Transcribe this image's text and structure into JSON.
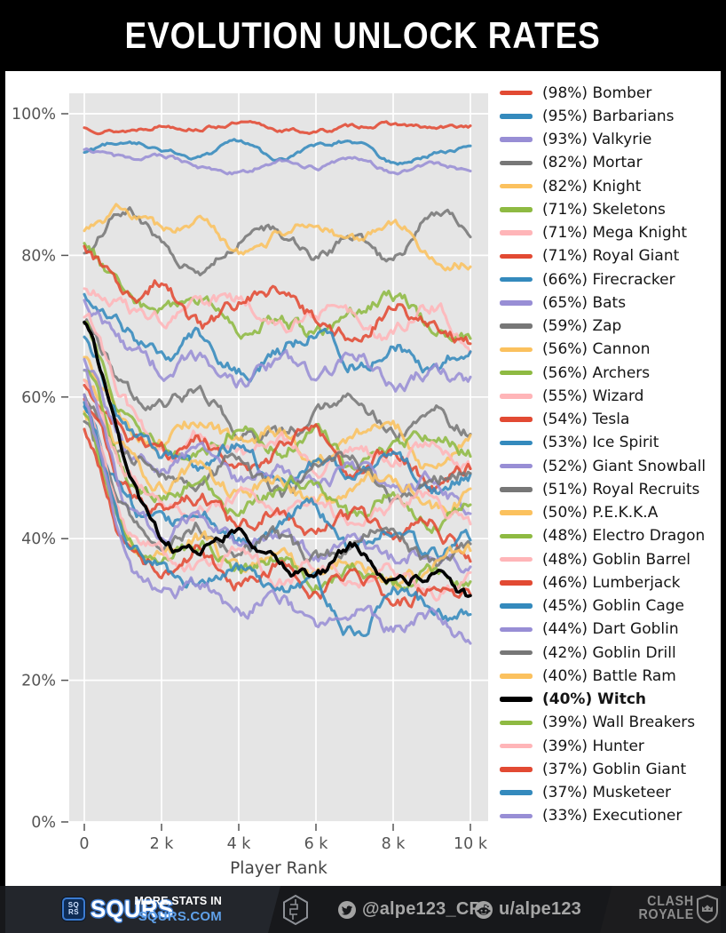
{
  "header": {
    "title": "EVOLUTION UNLOCK RATES"
  },
  "chart_data": {
    "type": "line",
    "title": "EVOLUTION UNLOCK RATES",
    "xlabel": "Player Rank",
    "ylabel": "",
    "x": [
      0,
      1000,
      2000,
      3000,
      4000,
      5000,
      6000,
      7000,
      8000,
      9000,
      10000
    ],
    "xlim": [
      -400,
      10600
    ],
    "ylim": [
      0,
      103
    ],
    "grid": true,
    "legend_position": "right",
    "plot_bg": "#e5e5e5",
    "grid_color": "#ffffff",
    "tick_color": "#555555",
    "xticks": [
      {
        "v": 0,
        "label": "0"
      },
      {
        "v": 2000,
        "label": "2 k"
      },
      {
        "v": 4000,
        "label": "4 k"
      },
      {
        "v": 6000,
        "label": "6 k"
      },
      {
        "v": 8000,
        "label": "8 k"
      },
      {
        "v": 10000,
        "label": "10 k"
      }
    ],
    "yticks": [
      {
        "v": 0,
        "label": "0%"
      },
      {
        "v": 20,
        "label": "20%"
      },
      {
        "v": 40,
        "label": "40%"
      },
      {
        "v": 60,
        "label": "60%"
      },
      {
        "v": 80,
        "label": "80%"
      },
      {
        "v": 100,
        "label": "100%"
      }
    ],
    "series": [
      {
        "label": "(98%) Bomber",
        "name": "Bomber",
        "pct": 98,
        "color": "#E24A33",
        "bold": false,
        "values": [
          98,
          97.6,
          98.4,
          98,
          98.6,
          97.8,
          97.5,
          98.2,
          98.5,
          97.9,
          98.3
        ]
      },
      {
        "label": "(95%) Barbarians",
        "name": "Barbarians",
        "pct": 95,
        "color": "#348ABD",
        "bold": false,
        "values": [
          94.5,
          96.2,
          95,
          93.8,
          96,
          93.4,
          95.2,
          96,
          93,
          94.3,
          95.4
        ]
      },
      {
        "label": "(93%) Valkyrie",
        "name": "Valkyrie",
        "pct": 93,
        "color": "#988ED5",
        "bold": false,
        "values": [
          95,
          93.6,
          94.2,
          92.4,
          91.6,
          93.2,
          92.4,
          93.6,
          91.8,
          93,
          92
        ]
      },
      {
        "label": "(82%) Mortar",
        "name": "Mortar",
        "pct": 82,
        "color": "#777777",
        "bold": false,
        "values": [
          80,
          86,
          82,
          78,
          82,
          83.5,
          80,
          82.5,
          79,
          86,
          84
        ]
      },
      {
        "label": "(82%) Knight",
        "name": "Knight",
        "pct": 82,
        "color": "#FBC15E",
        "bold": false,
        "values": [
          84,
          86.5,
          83.5,
          85,
          80.5,
          83,
          84.5,
          82,
          85,
          80,
          79
        ]
      },
      {
        "label": "(71%) Skeletons",
        "name": "Skeletons",
        "pct": 71,
        "color": "#8EBA42",
        "bold": false,
        "values": [
          82,
          74.5,
          72,
          74,
          70,
          71.5,
          69,
          72,
          74,
          70,
          68.5
        ]
      },
      {
        "label": "(71%) Mega Knight",
        "name": "Mega Knight",
        "pct": 71,
        "color": "#FFB5B8",
        "bold": false,
        "values": [
          76,
          73,
          71,
          72.5,
          74,
          70,
          72,
          71,
          69,
          73,
          68
        ]
      },
      {
        "label": "(71%) Royal Giant",
        "name": "Royal Giant",
        "pct": 71,
        "color": "#E24A33",
        "bold": false,
        "values": [
          82,
          74,
          76,
          70,
          73,
          75,
          71,
          69,
          72.5,
          70,
          67.5
        ]
      },
      {
        "label": "(66%) Firecracker",
        "name": "Firecracker",
        "pct": 66,
        "color": "#348ABD",
        "bold": false,
        "values": [
          75,
          70,
          66,
          68.5,
          64,
          66,
          69,
          65,
          67,
          64,
          67.5
        ]
      },
      {
        "label": "(65%) Bats",
        "name": "Bats",
        "pct": 65,
        "color": "#988ED5",
        "bold": false,
        "values": [
          73,
          68,
          64,
          66,
          62,
          65,
          63,
          66,
          61.5,
          64,
          62
        ]
      },
      {
        "label": "(59%) Zap",
        "name": "Zap",
        "pct": 59,
        "color": "#777777",
        "bold": false,
        "values": [
          71,
          62,
          58,
          61,
          56,
          54,
          57,
          60,
          55,
          58,
          55
        ]
      },
      {
        "label": "(56%) Cannon",
        "name": "Cannon",
        "pct": 56,
        "color": "#FBC15E",
        "bold": false,
        "values": [
          65,
          57,
          54,
          57,
          53,
          55,
          52,
          54,
          56,
          50,
          54
        ]
      },
      {
        "label": "(56%) Archers",
        "name": "Archers",
        "pct": 56,
        "color": "#8EBA42",
        "bold": false,
        "values": [
          70,
          58,
          54,
          52,
          56,
          53,
          55,
          50,
          53,
          55,
          52
        ]
      },
      {
        "label": "(55%) Wizard",
        "name": "Wizard",
        "pct": 55,
        "color": "#FFB5B8",
        "bold": false,
        "values": [
          72,
          60,
          53,
          55,
          52,
          54,
          50,
          53,
          51,
          54,
          50
        ]
      },
      {
        "label": "(54%) Tesla",
        "name": "Tesla",
        "pct": 54,
        "color": "#E24A33",
        "bold": false,
        "values": [
          62,
          55,
          52,
          54,
          50,
          52,
          55,
          49,
          52,
          48,
          50
        ]
      },
      {
        "label": "(53%) Ice Spirit",
        "name": "Ice Spirit",
        "pct": 53,
        "color": "#348ABD",
        "bold": false,
        "values": [
          68,
          56,
          52,
          50,
          53,
          48,
          51,
          49,
          52,
          47,
          49
        ]
      },
      {
        "label": "(52%) Giant Snowball",
        "name": "Giant Snowball",
        "pct": 52,
        "color": "#988ED5",
        "bold": false,
        "values": [
          66,
          54,
          50,
          52,
          48,
          50,
          47,
          50,
          46,
          48,
          44
        ]
      },
      {
        "label": "(51%) Royal Recruits",
        "name": "Royal Recruits",
        "pct": 51,
        "color": "#777777",
        "bold": false,
        "values": [
          60,
          52,
          50,
          48,
          51,
          46,
          49,
          51,
          45,
          48,
          50
        ]
      },
      {
        "label": "(50%) P.E.K.K.A",
        "name": "P.E.K.K.A",
        "pct": 50,
        "color": "#FBC15E",
        "bold": false,
        "values": [
          63,
          52,
          48,
          50,
          46,
          48,
          45,
          47,
          49,
          44,
          46
        ]
      },
      {
        "label": "(48%) Electro Dragon",
        "name": "Electro Dragon",
        "pct": 48,
        "color": "#8EBA42",
        "bold": false,
        "values": [
          64,
          50,
          46,
          48,
          44,
          46,
          48,
          43,
          46,
          42,
          45
        ]
      },
      {
        "label": "(48%) Goblin Barrel",
        "name": "Goblin Barrel",
        "pct": 48,
        "color": "#FFB5B8",
        "bold": false,
        "values": [
          62,
          50,
          47,
          44,
          46,
          43,
          45,
          42,
          44,
          46,
          41
        ]
      },
      {
        "label": "(46%) Lumberjack",
        "name": "Lumberjack",
        "pct": 46,
        "color": "#E24A33",
        "bold": false,
        "values": [
          60,
          48,
          44,
          46,
          42,
          44,
          41,
          43,
          40,
          42,
          38
        ]
      },
      {
        "label": "(45%) Goblin Cage",
        "name": "Goblin Cage",
        "pct": 45,
        "color": "#348ABD",
        "bold": false,
        "values": [
          58,
          46,
          42,
          44,
          40,
          42,
          44,
          39,
          41,
          38,
          40
        ]
      },
      {
        "label": "(44%) Dart Goblin",
        "name": "Dart Goblin",
        "pct": 44,
        "color": "#988ED5",
        "bold": false,
        "values": [
          64,
          46,
          41,
          43,
          39,
          41,
          38,
          40,
          37,
          39,
          36
        ]
      },
      {
        "label": "(42%) Goblin Drill",
        "name": "Goblin Drill",
        "pct": 42,
        "color": "#777777",
        "bold": false,
        "values": [
          56,
          44,
          40,
          42,
          38,
          40,
          37,
          39,
          41,
          36,
          38
        ]
      },
      {
        "label": "(40%) Battle Ram",
        "name": "Battle Ram",
        "pct": 40,
        "color": "#FBC15E",
        "bold": false,
        "values": [
          58,
          42,
          38,
          40,
          36,
          38,
          35,
          37,
          34,
          36,
          38
        ]
      },
      {
        "label": "(40%) Witch",
        "name": "Witch",
        "pct": 40,
        "color": "#000000",
        "bold": true,
        "values": [
          71,
          52,
          40,
          39,
          41,
          36.5,
          35,
          39,
          34,
          35,
          31.5
        ]
      },
      {
        "label": "(39%) Wall Breakers",
        "name": "Wall Breakers",
        "pct": 39,
        "color": "#8EBA42",
        "bold": false,
        "values": [
          57,
          42,
          37,
          39,
          35,
          37,
          34,
          36,
          33,
          35,
          33
        ]
      },
      {
        "label": "(39%) Hunter",
        "name": "Hunter",
        "pct": 39,
        "color": "#FFB5B8",
        "bold": false,
        "values": [
          60,
          42,
          38,
          36,
          38,
          34,
          36,
          33,
          35,
          32,
          34
        ]
      },
      {
        "label": "(37%) Goblin Giant",
        "name": "Goblin Giant",
        "pct": 37,
        "color": "#E24A33",
        "bold": false,
        "values": [
          55,
          40,
          36,
          38,
          34,
          36,
          33,
          35,
          31,
          33,
          32
        ]
      },
      {
        "label": "(37%) Musketeer",
        "name": "Musketeer",
        "pct": 37,
        "color": "#348ABD",
        "bold": false,
        "values": [
          59,
          41,
          36,
          34,
          36,
          32,
          34,
          27,
          33,
          30,
          29
        ]
      },
      {
        "label": "(33%) Executioner",
        "name": "Executioner",
        "pct": 33,
        "color": "#988ED5",
        "bold": false,
        "values": [
          60,
          38,
          32,
          34,
          30,
          32,
          28,
          30,
          27,
          29,
          25
        ]
      }
    ]
  },
  "footer": {
    "brand": "SQURS",
    "badge_top": "SQ",
    "badge_bottom": "RS",
    "more_stats_line1": "MORE STATS IN",
    "more_stats_line2": "SQURS.COM",
    "twitter_handle": "@alpe123_CR",
    "reddit_handle": "u/alpe123",
    "clash_line1": "CLASH",
    "clash_line2": "ROYALE",
    "accent_blue": "#5fa0e8"
  }
}
